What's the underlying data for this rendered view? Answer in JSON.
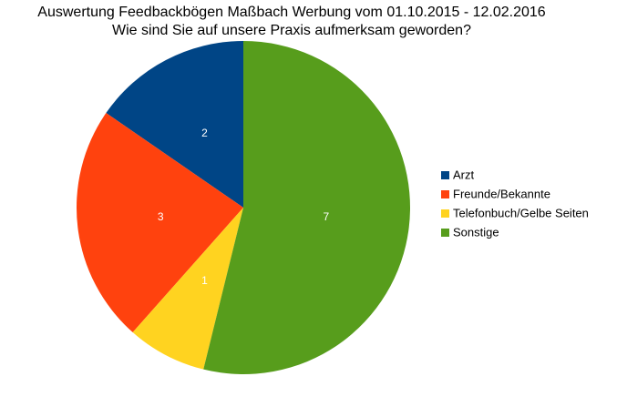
{
  "chart_data": {
    "type": "pie",
    "title": "Auswertung Feedbackbögen Maßbach Werbung vom 01.10.2015 - 12.02.2016",
    "subtitle": "Wie sind Sie auf unsere Praxis aufmerksam geworden?",
    "categories": [
      "Arzt",
      "Freunde/Bekannte",
      "Telefonbuch/Gelbe Seiten",
      "Sonstige"
    ],
    "values": [
      2,
      3,
      1,
      7
    ],
    "colors": [
      "#004586",
      "#ff420e",
      "#ffd320",
      "#579d1c"
    ],
    "legend": "right"
  }
}
